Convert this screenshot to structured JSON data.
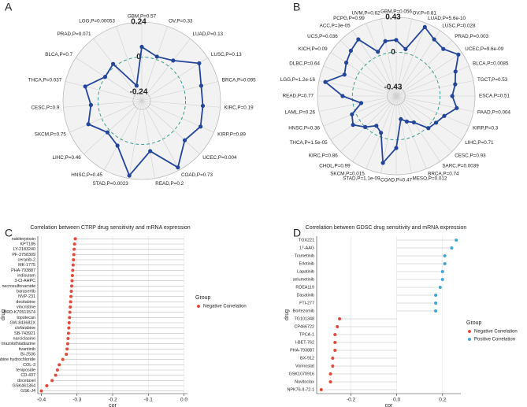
{
  "chart_data": [
    {
      "type": "radar",
      "panel": "A",
      "categories": [
        "GBM,P=0.57",
        "OV,P=0.33",
        "LUAD,P=0.13",
        "LUSC,P=0.13",
        "BRCA,P=0.095",
        "KIRC,P=0.19",
        "KIRP,P=0.89",
        "UCEC,P=0.004",
        "COAD,P=0.73",
        "READ,P=0.2",
        "STAD,P=0.0023",
        "HNSC,P=0.45",
        "LIHC,P=0.46",
        "SKCM,P=0.75",
        "CESC,P=0.9",
        "THCA,P=0.037",
        "BLCA,P=0.7",
        "PRAD,P=0.071",
        "LGG,P=0.00053"
      ],
      "values": [
        0.07,
        0.02,
        0.05,
        0.17,
        0.12,
        0.12,
        0.14,
        0.1,
        0.22,
        0.05,
        0.22,
        0.05,
        0.02,
        0.1,
        0.05,
        0.1,
        0.0,
        0.02,
        -0.19
      ],
      "color": "#23459a",
      "rlim": [
        -0.3,
        0.24
      ],
      "rticks": [
        0.24,
        0,
        -0.24
      ]
    },
    {
      "type": "radar",
      "panel": "B",
      "categories": [
        "GBM,P=0.056",
        "OV,P=0.81",
        "LUAD,P=5.6e-10",
        "LUSC,P=0.028",
        "PRAD,P=0.003",
        "UCEC,P=9.6e-09",
        "BLCA,P=0.0085",
        "TGCT,P=0.53",
        "ESCA,P=0.51",
        "PAAD,P=0.004",
        "KIRP,P=0.3",
        "LIHC,P=0.71",
        "CESC,P=0.93",
        "SARC,P=0.0039",
        "BRCA,P=0.74",
        "MESO,P=0.012",
        "COAD,P=0.47",
        "STAD,P=1.1e-09",
        "SKCM,P=0.015",
        "CHOL,P=0.99",
        "KIRC,P=0.86",
        "THCA,P=1.5e-05",
        "HNSC,P=0.36",
        "LAML,P=0.26",
        "READ,P=0.77",
        "LGG,P=1.2e-16",
        "DLBC,P=0.64",
        "KICH,P=0.09",
        "UCS,P=0.036",
        "ACC,P=3e-05",
        "PCPG,P=0.99",
        "UVM,P=0.62"
      ],
      "values": [
        0.15,
        0.05,
        0.38,
        0.3,
        0.28,
        0.38,
        0.25,
        0.2,
        0.15,
        0.22,
        0.1,
        0.05,
        0.02,
        -0.15,
        -0.2,
        -0.25,
        0.1,
        0.3,
        -0.05,
        -0.1,
        0.0,
        0.1,
        0.05,
        -0.1,
        0.12,
        0.35,
        0.15,
        0.2,
        0.25,
        0.3,
        0.05,
        0.15
      ],
      "color": "#23459a",
      "rlim": [
        -0.54,
        0.43
      ],
      "rticks": [
        0.43,
        0,
        -0.43
      ]
    },
    {
      "type": "lollipop",
      "panel": "C",
      "title": "Correlation between CTRP drug sensitivity and mRNA expression",
      "x_label": "cor",
      "y_label": "drug",
      "legend_title": "Group",
      "categories": [
        "nakiterpiosin",
        "KPT185",
        "LY-2183240",
        "PF-3758309",
        "ceranib-2",
        "MK-1775",
        "PHA-793887",
        "indisulam",
        "3-Cl-AHPC",
        "necrosulfonamide",
        "barasertib",
        "NVP-231",
        "decitabine",
        "vincristine",
        "BRD-K70511574",
        "topotecan",
        "GW-843682X",
        "clofarabine",
        "SB-743921",
        "narciclasine",
        "triazolothiadiazine",
        "tivantinib",
        "BI-2536",
        "cytarabine hydrochloride",
        "COL-3",
        "teniposide",
        "CD-437",
        "docetaxel",
        "GSK461364",
        "GSK-J4"
      ],
      "series": [
        {
          "name": "Negative Correlation",
          "color": "#e2493a",
          "values": [
            -0.305,
            -0.307,
            -0.308,
            -0.309,
            -0.31,
            -0.311,
            -0.312,
            -0.313,
            -0.314,
            -0.315,
            -0.316,
            -0.317,
            -0.318,
            -0.319,
            -0.32,
            -0.321,
            -0.322,
            -0.323,
            -0.324,
            -0.325,
            -0.326,
            -0.328,
            -0.33,
            -0.34,
            -0.35,
            -0.355,
            -0.36,
            -0.37,
            -0.385,
            -0.4
          ]
        }
      ],
      "xlim": [
        -0.41,
        0.01
      ],
      "xticks": [
        -0.4,
        -0.3,
        -0.2,
        -0.1,
        {
          "value": 0,
          "label": "0.0"
        }
      ]
    },
    {
      "type": "lollipop",
      "panel": "D",
      "title": "Correlation between GDSC drug sensitivity and mRNA expression",
      "x_label": "cor",
      "y_label": "drug",
      "legend_title": "Group",
      "categories": [
        "TGX221",
        "17-AAG",
        "Trametinib",
        "Erlotinib",
        "Lapatinib",
        "selumetinib",
        "RDEA119",
        "Dasatinib",
        "FTI-277",
        "Bortezomib",
        "TG101348",
        "CP466722",
        "TPCA-1",
        "I-BET-762",
        "PHA-793887",
        "BX-912",
        "Vorinostat",
        "GSK1070916",
        "Navitoclax",
        "NPK76-II-72-1"
      ],
      "series": [
        {
          "name": "Negative Correlation",
          "color": "#e2493a",
          "values": [
            null,
            null,
            null,
            null,
            null,
            null,
            null,
            null,
            null,
            null,
            -0.25,
            -0.26,
            -0.27,
            -0.27,
            -0.27,
            -0.28,
            -0.28,
            -0.29,
            -0.29,
            -0.33
          ]
        },
        {
          "name": "Positive Correlation",
          "color": "#3fa6d8",
          "values": [
            0.26,
            0.24,
            0.21,
            0.21,
            0.2,
            0.2,
            0.19,
            0.17,
            0.17,
            0.17,
            null,
            null,
            null,
            null,
            null,
            null,
            null,
            null,
            null,
            null
          ]
        }
      ],
      "xlim": [
        -0.35,
        0.28
      ],
      "xticks": [
        -0.2,
        {
          "value": 0,
          "label": "0.0"
        },
        0.2
      ]
    }
  ]
}
